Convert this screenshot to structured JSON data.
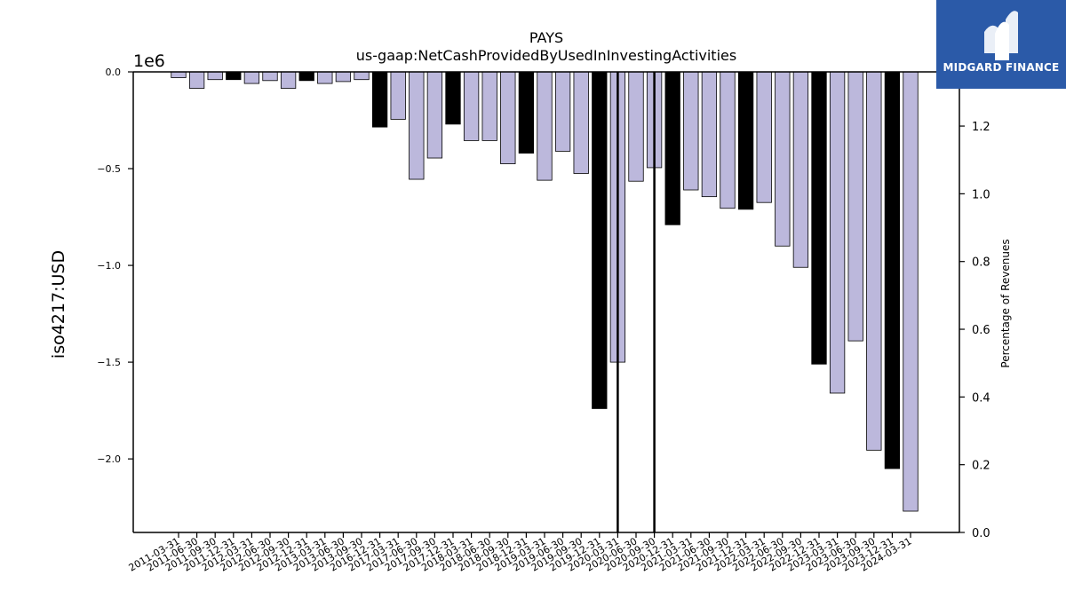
{
  "chart_data": {
    "type": "bar",
    "title": "PAYS",
    "subtitle": "us-gaap:NetCashProvidedByUsedInInvestingActivities",
    "ylabel": "iso4217:USD",
    "y_offset_label": "1e6",
    "y2label": "Percentage of Revenues",
    "ylim": [
      -2.38,
      0.0
    ],
    "y2lim": [
      0.0,
      1.36
    ],
    "yticks": [
      "0.0",
      "−0.5",
      "−1.0",
      "−1.5",
      "−2.0"
    ],
    "y2ticks": [
      "0.0",
      "0.2",
      "0.4",
      "0.6",
      "0.8",
      "1.0",
      "1.2"
    ],
    "grid": false,
    "categories": [
      "2011-03-31",
      "2011-06-30",
      "2011-09-30",
      "2011-12-31",
      "2012-03-31",
      "2012-06-30",
      "2012-09-30",
      "2012-12-31",
      "2013-03-31",
      "2013-06-30",
      "2013-09-30",
      "2016-12-31",
      "2017-03-31",
      "2017-06-30",
      "2017-09-30",
      "2017-12-31",
      "2018-03-31",
      "2018-06-30",
      "2018-09-30",
      "2018-12-31",
      "2019-03-31",
      "2019-06-30",
      "2019-09-30",
      "2019-12-31",
      "2020-03-31",
      "2020-06-30",
      "2020-09-30",
      "2020-12-31",
      "2021-03-31",
      "2021-06-30",
      "2021-09-30",
      "2021-12-31",
      "2022-03-31",
      "2022-06-30",
      "2022-09-30",
      "2022-12-31",
      "2023-03-31",
      "2023-06-30",
      "2023-09-30",
      "2023-12-31",
      "2024-03-31"
    ],
    "values": [
      -0.03,
      -0.085,
      -0.04,
      -0.04,
      -0.06,
      -0.045,
      -0.085,
      -0.045,
      -0.06,
      -0.05,
      -0.04,
      -0.285,
      -0.245,
      -0.555,
      -0.445,
      -0.27,
      -0.355,
      -0.355,
      -0.475,
      -0.42,
      -0.56,
      -0.41,
      -0.525,
      -1.74,
      -1.5,
      -0.565,
      -0.495,
      -0.79,
      -0.61,
      -0.645,
      -0.705,
      -0.71,
      -0.675,
      -0.9,
      -1.01,
      -1.51,
      -1.66,
      -1.39,
      -1.955,
      -2.05,
      -2.27
    ],
    "highlight": [
      false,
      false,
      false,
      true,
      false,
      false,
      false,
      true,
      false,
      false,
      false,
      true,
      false,
      false,
      false,
      true,
      false,
      false,
      false,
      true,
      false,
      false,
      false,
      true,
      false,
      false,
      false,
      true,
      false,
      false,
      false,
      true,
      false,
      false,
      false,
      true,
      false,
      false,
      false,
      true,
      false
    ],
    "vlines_at": [
      "2020-03-31",
      "2020-09-30"
    ],
    "colors": {
      "bar": "#bcb8dc",
      "highlight_bar": "#000000",
      "edge": "#000000"
    }
  },
  "logo": {
    "text": "MIDGARD FINANCE"
  }
}
